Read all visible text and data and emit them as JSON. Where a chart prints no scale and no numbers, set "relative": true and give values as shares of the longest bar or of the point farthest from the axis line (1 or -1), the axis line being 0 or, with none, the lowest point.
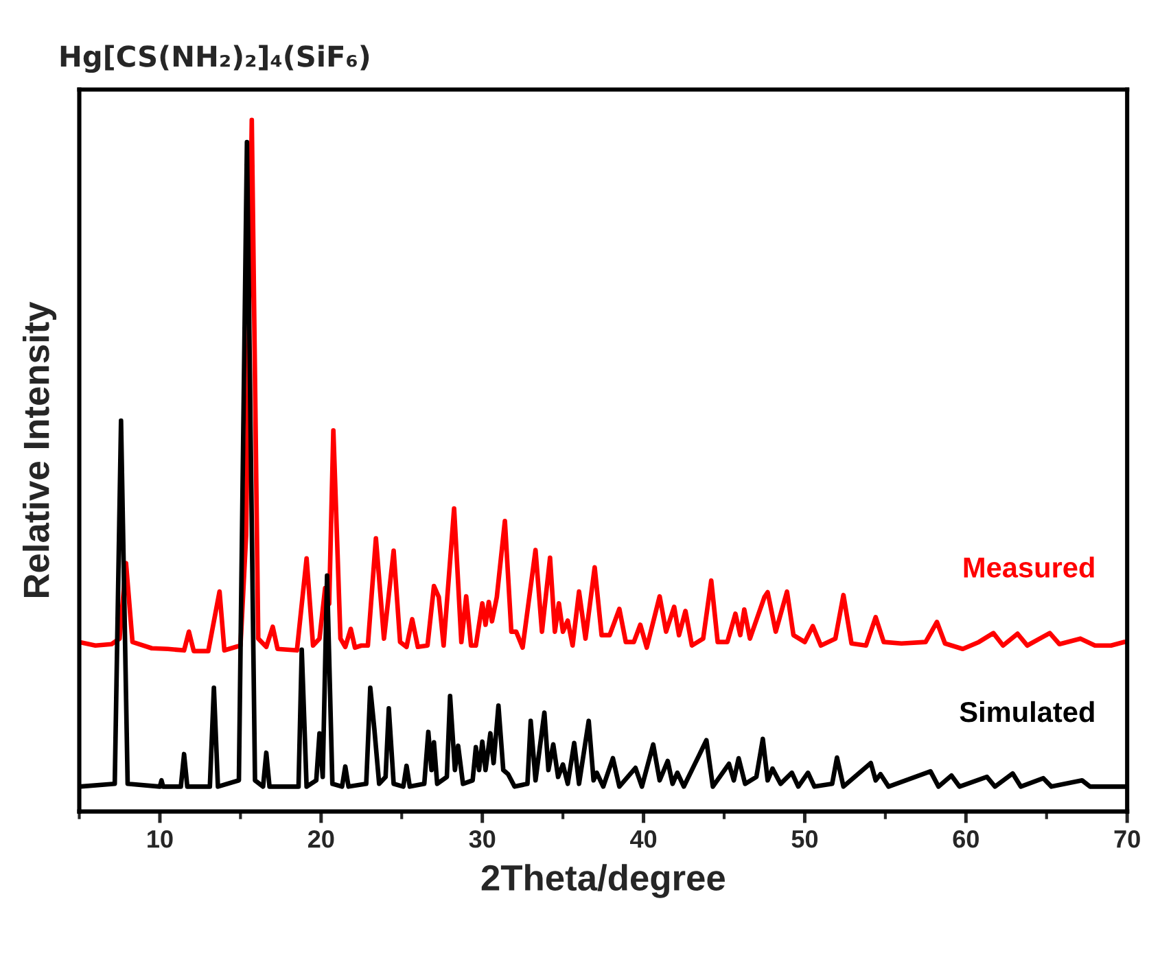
{
  "chart_data": {
    "type": "line",
    "title": "Hg[CS(NH₂)₂]₄(SiF₆)",
    "xlabel": "2Theta/degree",
    "ylabel": "Relative Intensity",
    "relative": true,
    "xlim": [
      5,
      70
    ],
    "xticks": [
      {
        "value": 5,
        "label": null
      },
      10,
      {
        "value": 15,
        "label": null
      },
      20,
      {
        "value": 25,
        "label": null
      },
      30,
      {
        "value": 35,
        "label": null
      },
      40,
      {
        "value": 45,
        "label": null
      },
      50,
      {
        "value": 55,
        "label": null
      },
      60,
      {
        "value": 65,
        "label": null
      },
      70
    ],
    "tick_labels": "x",
    "grid": false,
    "legend": false,
    "marker": "none",
    "line_style": "solid",
    "series": [
      {
        "name": "Measured",
        "color": "#ff0000",
        "x": [
          5,
          6,
          7.0,
          7.5,
          7.9,
          8.3,
          9.5,
          10.5,
          11.5,
          11.8,
          12.1,
          13.0,
          13.7,
          14.0,
          15.0,
          15.35,
          15.7,
          16.1,
          16.6,
          17.0,
          17.3,
          18.5,
          19.1,
          19.5,
          19.9,
          20.25,
          20.5,
          20.76,
          21.2,
          21.5,
          21.84,
          22.1,
          22.5,
          22.9,
          23.4,
          23.9,
          24.5,
          24.9,
          25.3,
          25.65,
          26.0,
          26.6,
          27.0,
          27.3,
          27.6,
          28.25,
          28.7,
          29.0,
          29.3,
          29.6,
          30.0,
          30.2,
          30.4,
          30.6,
          30.9,
          31.4,
          31.8,
          32.1,
          32.5,
          33.3,
          33.7,
          34.2,
          34.5,
          34.75,
          35.0,
          35.3,
          35.6,
          36.0,
          36.4,
          36.97,
          37.4,
          37.9,
          38.5,
          38.9,
          39.4,
          39.8,
          40.2,
          41.0,
          41.4,
          41.9,
          42.2,
          42.6,
          43.0,
          43.7,
          44.2,
          44.6,
          45.2,
          45.7,
          46.0,
          46.25,
          46.6,
          47.5,
          47.7,
          48.2,
          48.9,
          49.3,
          50.0,
          50.5,
          51.0,
          51.9,
          52.4,
          52.9,
          53.8,
          54.4,
          54.9,
          56.0,
          57.5,
          58.2,
          58.7,
          59.8,
          60.8,
          61.7,
          62.3,
          63.2,
          63.8,
          65.2,
          65.8,
          67.1,
          68.0,
          69.0,
          69.8,
          70
        ],
        "values": [
          0.245,
          0.24,
          0.242,
          0.25,
          0.359,
          0.245,
          0.236,
          0.235,
          0.233,
          0.26,
          0.232,
          0.232,
          0.318,
          0.233,
          0.24,
          0.4,
          1.0,
          0.25,
          0.238,
          0.267,
          0.235,
          0.233,
          0.366,
          0.24,
          0.25,
          0.323,
          0.3,
          0.551,
          0.25,
          0.238,
          0.264,
          0.237,
          0.24,
          0.24,
          0.395,
          0.25,
          0.377,
          0.245,
          0.238,
          0.278,
          0.238,
          0.24,
          0.326,
          0.31,
          0.24,
          0.438,
          0.245,
          0.311,
          0.24,
          0.24,
          0.301,
          0.27,
          0.303,
          0.275,
          0.31,
          0.42,
          0.26,
          0.26,
          0.237,
          0.378,
          0.26,
          0.367,
          0.26,
          0.301,
          0.26,
          0.276,
          0.24,
          0.318,
          0.25,
          0.353,
          0.255,
          0.255,
          0.293,
          0.245,
          0.245,
          0.27,
          0.237,
          0.311,
          0.26,
          0.296,
          0.255,
          0.29,
          0.24,
          0.25,
          0.334,
          0.245,
          0.245,
          0.286,
          0.255,
          0.292,
          0.25,
          0.31,
          0.317,
          0.26,
          0.318,
          0.255,
          0.245,
          0.268,
          0.24,
          0.25,
          0.313,
          0.243,
          0.24,
          0.281,
          0.245,
          0.243,
          0.245,
          0.274,
          0.243,
          0.235,
          0.245,
          0.258,
          0.24,
          0.257,
          0.24,
          0.258,
          0.242,
          0.25,
          0.24,
          0.24,
          0.245,
          0.245
        ]
      },
      {
        "name": "Simulated",
        "color": "#000000",
        "x": [
          5,
          7.2,
          7.59,
          8.0,
          10.0,
          10.1,
          10.2,
          11.3,
          11.5,
          11.7,
          13.1,
          13.35,
          13.6,
          14.9,
          15.4,
          15.9,
          16.4,
          16.6,
          16.8,
          18.6,
          18.8,
          19.1,
          19.7,
          19.9,
          20.1,
          20.37,
          20.7,
          21.3,
          21.5,
          21.7,
          22.8,
          23.05,
          23.3,
          23.6,
          24.0,
          24.2,
          24.5,
          25.1,
          25.3,
          25.5,
          26.4,
          26.65,
          26.85,
          27.0,
          27.2,
          27.8,
          28.0,
          28.3,
          28.5,
          28.8,
          29.4,
          29.6,
          29.8,
          30.0,
          30.2,
          30.5,
          30.7,
          31.0,
          31.3,
          31.6,
          32.0,
          32.8,
          33.0,
          33.3,
          33.85,
          34.1,
          34.4,
          34.7,
          35.0,
          35.3,
          35.7,
          36.0,
          36.6,
          36.9,
          37.1,
          37.5,
          38.1,
          38.5,
          39.5,
          39.9,
          40.6,
          41.0,
          41.5,
          41.8,
          42.1,
          42.5,
          43.9,
          44.3,
          45.3,
          45.6,
          45.9,
          46.3,
          47.0,
          47.4,
          47.7,
          48.0,
          48.5,
          49.2,
          49.6,
          50.2,
          50.6,
          51.7,
          52.0,
          52.4,
          54.1,
          54.4,
          54.7,
          55.2,
          57.8,
          58.3,
          59.1,
          59.6,
          61.3,
          61.8,
          62.9,
          63.4,
          64.8,
          65.3,
          67.2,
          67.7,
          70
        ],
        "values": [
          0.036,
          0.04,
          0.565,
          0.04,
          0.036,
          0.045,
          0.036,
          0.036,
          0.083,
          0.036,
          0.036,
          0.179,
          0.036,
          0.045,
          0.968,
          0.045,
          0.036,
          0.085,
          0.036,
          0.036,
          0.234,
          0.036,
          0.045,
          0.113,
          0.05,
          0.341,
          0.04,
          0.036,
          0.065,
          0.036,
          0.04,
          0.179,
          0.12,
          0.04,
          0.05,
          0.149,
          0.04,
          0.036,
          0.066,
          0.036,
          0.04,
          0.115,
          0.06,
          0.1,
          0.04,
          0.05,
          0.167,
          0.06,
          0.095,
          0.04,
          0.045,
          0.093,
          0.06,
          0.101,
          0.06,
          0.113,
          0.07,
          0.153,
          0.06,
          0.054,
          0.036,
          0.04,
          0.131,
          0.045,
          0.143,
          0.06,
          0.097,
          0.05,
          0.068,
          0.04,
          0.099,
          0.04,
          0.131,
          0.045,
          0.056,
          0.036,
          0.077,
          0.036,
          0.063,
          0.036,
          0.097,
          0.045,
          0.073,
          0.04,
          0.056,
          0.036,
          0.103,
          0.036,
          0.069,
          0.045,
          0.077,
          0.04,
          0.05,
          0.105,
          0.045,
          0.062,
          0.04,
          0.056,
          0.036,
          0.056,
          0.036,
          0.04,
          0.078,
          0.036,
          0.07,
          0.045,
          0.054,
          0.036,
          0.058,
          0.036,
          0.052,
          0.036,
          0.05,
          0.036,
          0.055,
          0.036,
          0.048,
          0.036,
          0.045,
          0.036,
          0.036
        ]
      }
    ]
  }
}
